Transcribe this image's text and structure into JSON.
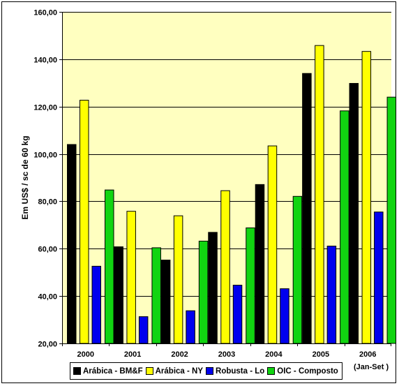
{
  "chart_data": {
    "type": "bar",
    "categories": [
      "2000",
      "2001",
      "2002",
      "2003",
      "2004",
      "2005",
      "2006"
    ],
    "category_note": "(Jan-Set )",
    "series": [
      {
        "name": "Arábica - BM&F",
        "color": "#000000",
        "values": [
          104,
          60.8,
          55.2,
          66.9,
          87.1,
          134,
          129.8
        ]
      },
      {
        "name": "Arábica - NY",
        "color": "#ffff00",
        "values": [
          122.7,
          75.8,
          73.9,
          84.5,
          103.4,
          145.8,
          143.3
        ]
      },
      {
        "name": "Robusta - Lo",
        "color": "#0000ee",
        "values": [
          52.6,
          31.3,
          33.8,
          44.6,
          43.1,
          61.1,
          75.5
        ]
      },
      {
        "name": "OIC - Composto",
        "color": "#11d411",
        "values": [
          84.8,
          60.4,
          63.2,
          68.8,
          82.1,
          118.2,
          124
        ]
      }
    ],
    "ylabel": "Em US$ / sc de 60 kg",
    "ylim": [
      20,
      160
    ],
    "yticks": [
      "20,00",
      "40,00",
      "60,00",
      "80,00",
      "100,00",
      "120,00",
      "140,00",
      "160,00"
    ],
    "grid": true,
    "plot_background": "#ffffc0",
    "legend_position": "bottom"
  }
}
